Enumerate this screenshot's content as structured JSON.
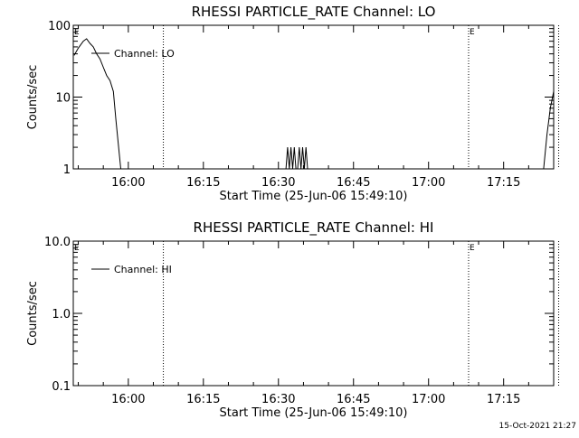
{
  "footer": {
    "timestamp": "15-Oct-2021 21:27"
  },
  "chart_data": [
    {
      "type": "line",
      "title": "RHESSI PARTICLE_RATE Channel: LO",
      "xlabel": "Start Time (25-Jun-06 15:49:10)",
      "ylabel": "Counts/sec",
      "yscale": "log",
      "ylim": [
        1,
        100
      ],
      "xlim_minutes_of_day": [
        949,
        1045
      ],
      "x_ticks": [
        "16:00",
        "16:15",
        "16:30",
        "16:45",
        "17:00",
        "17:15"
      ],
      "y_ticks": [
        "1",
        "10",
        "100"
      ],
      "legend": {
        "entries": [
          "Channel: LO"
        ],
        "position": "top-left"
      },
      "markers": [
        {
          "time": "15:49",
          "label": "E",
          "dotted": false
        },
        {
          "time": "16:07",
          "label": "",
          "dotted": true
        },
        {
          "time": "17:08",
          "label": "E",
          "dotted": true
        },
        {
          "time": "17:26",
          "label": "",
          "dotted": true
        }
      ],
      "series": [
        {
          "values_label": "counts_per_sec",
          "segments": [
            {
              "x": [
                "15:49:10",
                "15:50:00",
                "15:51:00",
                "15:51:40",
                "15:52:20",
                "15:53:00",
                "15:53:40",
                "15:54:20",
                "15:55:00",
                "15:55:40",
                "15:56:20",
                "15:57:00",
                "15:57:30",
                "15:58:00",
                "15:58:30"
              ],
              "y": [
                38,
                48,
                60,
                65,
                56,
                50,
                40,
                34,
                26,
                20,
                17,
                12,
                5,
                2.2,
                1
              ]
            },
            {
              "x": [
                "16:31:30",
                "16:31:50",
                "16:32:10",
                "16:32:30",
                "16:32:50",
                "16:33:10",
                "16:33:30",
                "16:33:50",
                "16:34:10",
                "16:34:30",
                "16:34:50",
                "16:35:10",
                "16:35:30",
                "16:35:50"
              ],
              "y": [
                1,
                2,
                1,
                2,
                1,
                2,
                1,
                1,
                2,
                1,
                2,
                1,
                2,
                1
              ]
            },
            {
              "x": [
                "17:23:00",
                "17:23:40",
                "17:24:20",
                "17:25:00"
              ],
              "y": [
                1,
                3,
                7,
                12
              ]
            }
          ]
        }
      ]
    },
    {
      "type": "line",
      "title": "RHESSI PARTICLE_RATE Channel: HI",
      "xlabel": "Start Time (25-Jun-06 15:49:10)",
      "ylabel": "Counts/sec",
      "yscale": "log",
      "ylim": [
        0.1,
        10
      ],
      "xlim_minutes_of_day": [
        949,
        1045
      ],
      "x_ticks": [
        "16:00",
        "16:15",
        "16:30",
        "16:45",
        "17:00",
        "17:15"
      ],
      "y_ticks": [
        "0.1",
        "1.0",
        "10.0"
      ],
      "legend": {
        "entries": [
          "Channel: HI"
        ],
        "position": "top-left"
      },
      "markers": [
        {
          "time": "15:49",
          "label": "E",
          "dotted": false
        },
        {
          "time": "16:07",
          "label": "",
          "dotted": true
        },
        {
          "time": "17:08",
          "label": "E",
          "dotted": true
        },
        {
          "time": "17:26",
          "label": "",
          "dotted": true
        }
      ],
      "series": []
    }
  ]
}
